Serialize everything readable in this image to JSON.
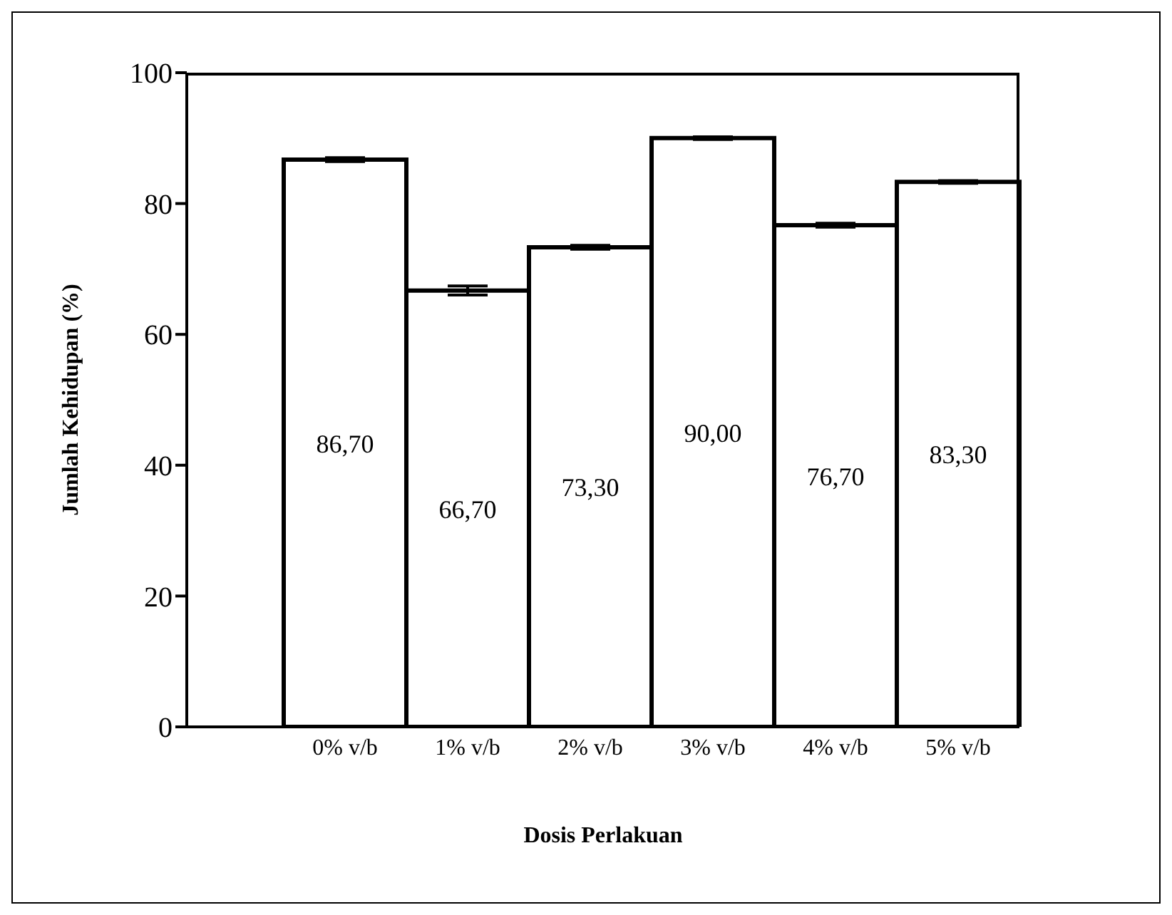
{
  "chart_data": {
    "type": "bar",
    "xlabel": "Dosis Perlakuan",
    "ylabel": "Jumlah Kehidupan (%)",
    "categories": [
      "0% v/b",
      "1% v/b",
      "2% v/b",
      "3% v/b",
      "4% v/b",
      "5% v/b"
    ],
    "values": [
      86.7,
      66.7,
      73.3,
      90.0,
      76.7,
      83.3
    ],
    "errors": [
      0.3,
      0.7,
      0.3,
      0.2,
      0.3,
      0.2
    ],
    "value_labels": [
      "86,70",
      "66,70",
      "73,30",
      "90,00",
      "76,70",
      "83,30"
    ],
    "color": "#ffffff",
    "ylim": [
      0,
      100
    ],
    "yticks": [
      0,
      20,
      40,
      60,
      80,
      100
    ],
    "grid": false,
    "legend": false
  }
}
